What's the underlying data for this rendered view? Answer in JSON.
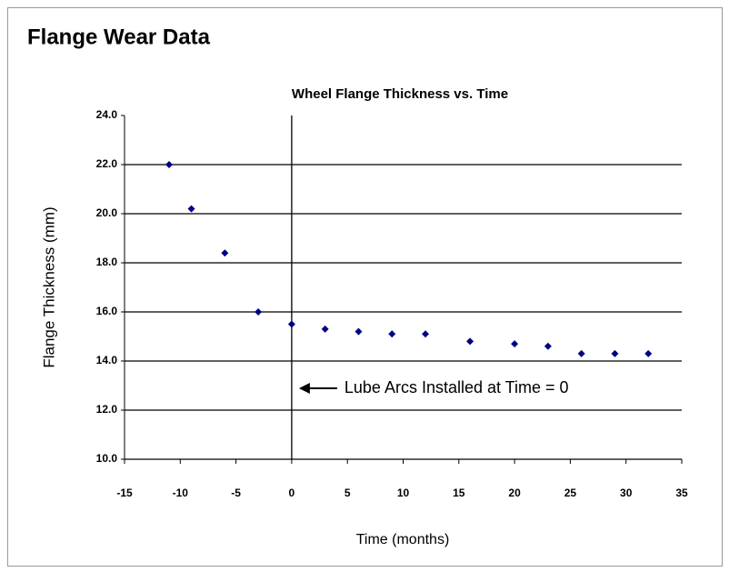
{
  "header": {
    "title": "Flange Wear Data"
  },
  "chart_data": {
    "type": "scatter",
    "title": "Wheel Flange Thickness vs. Time",
    "x_label": "Time (months)",
    "y_label": "Flange Thickness (mm)",
    "annotation": "Lube Arcs Installed at Time = 0",
    "series": [
      {
        "name": "Flange Thickness",
        "color": "#000080",
        "x": [
          -11,
          -9,
          -6,
          -3,
          0,
          3,
          6,
          9,
          12,
          16,
          20,
          23,
          26,
          29,
          32
        ],
        "values": [
          22.0,
          20.2,
          18.4,
          16.0,
          15.5,
          15.3,
          15.2,
          15.1,
          15.1,
          14.8,
          14.7,
          14.6,
          14.3,
          14.3,
          14.3
        ]
      }
    ],
    "xlim": [
      -15,
      35
    ],
    "xticks": [
      -15,
      -10,
      -5,
      0,
      5,
      10,
      15,
      20,
      25,
      30,
      35
    ],
    "ylim": [
      10,
      24
    ],
    "yticks": [
      {
        "value": 10,
        "label": "10.0"
      },
      {
        "value": 12,
        "label": "12.0"
      },
      {
        "value": 14,
        "label": "14.0"
      },
      {
        "value": 16,
        "label": "16.0"
      },
      {
        "value": 18,
        "label": "18.0"
      },
      {
        "value": 20,
        "label": "20.0"
      },
      {
        "value": 22,
        "label": "22.0"
      },
      {
        "value": 24,
        "label": "24.0"
      }
    ],
    "grid": true
  }
}
